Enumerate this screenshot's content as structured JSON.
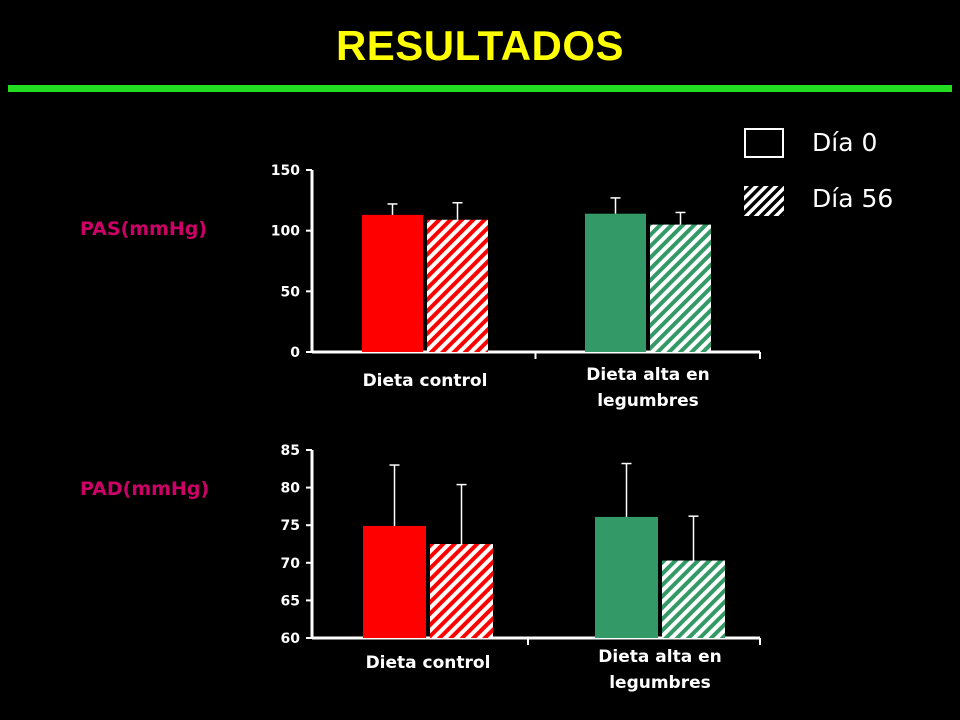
{
  "slide": {
    "title": "RESULTADOS"
  },
  "legend": {
    "day0": "Día 0",
    "day56": "Día 56",
    "day0_style": "solid",
    "day56_style": "hatched"
  },
  "colors": {
    "background": "#000000",
    "title": "#ffff00",
    "rule": "#22dd22",
    "y_titles": "#cc0066",
    "control": "#ff0000",
    "legumes": "#339966"
  },
  "chart_data": [
    {
      "type": "bar",
      "ylabel": "PAS(mmHg)",
      "categories": [
        "Dieta control",
        "Dieta alta en legumbres"
      ],
      "ylim": [
        0,
        150
      ],
      "yticks": [
        0,
        50,
        100,
        150
      ],
      "grid": false,
      "legend_position": "top-right",
      "series": [
        {
          "name": "Día 0",
          "values": [
            113,
            114
          ],
          "error": [
            9,
            13
          ]
        },
        {
          "name": "Día 56",
          "values": [
            109,
            105
          ],
          "error": [
            14,
            10
          ]
        }
      ]
    },
    {
      "type": "bar",
      "ylabel": "PAD(mmHg)",
      "categories": [
        "Dieta control",
        "Dieta alta en legumbres"
      ],
      "ylim": [
        60,
        85
      ],
      "yticks": [
        60,
        65,
        70,
        75,
        80,
        85
      ],
      "grid": false,
      "legend_position": "top-right",
      "series": [
        {
          "name": "Día 0",
          "values": [
            74.9,
            76.1
          ],
          "error": [
            8.1,
            7.1
          ]
        },
        {
          "name": "Día 56",
          "values": [
            72.5,
            70.3
          ],
          "error": [
            7.9,
            5.9
          ]
        }
      ]
    }
  ]
}
